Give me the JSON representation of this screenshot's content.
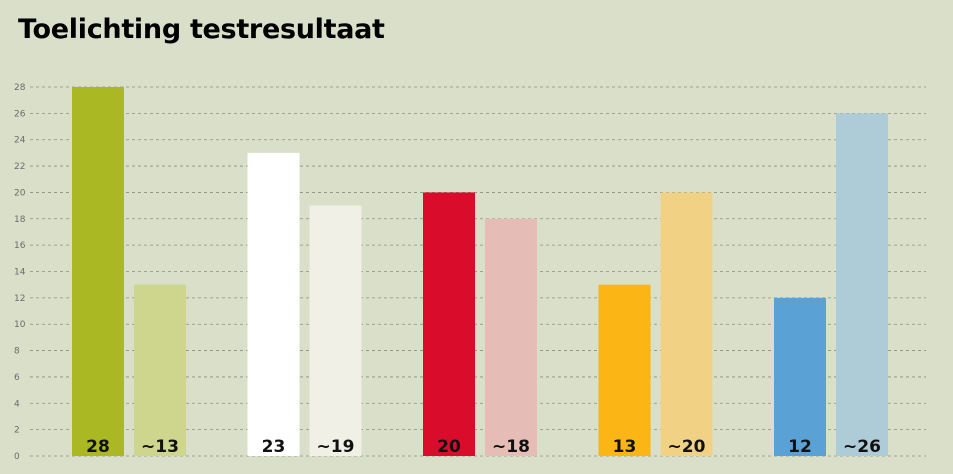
{
  "page": {
    "title": "Toelichting testresultaat"
  },
  "chart_data": {
    "type": "bar",
    "title": "Toelichting testresultaat",
    "xlabel": "",
    "ylabel": "",
    "ylim": [
      0,
      28
    ],
    "yticks": [
      0,
      2,
      4,
      6,
      8,
      10,
      12,
      14,
      16,
      18,
      20,
      22,
      24,
      26,
      28
    ],
    "grid": true,
    "bars": [
      {
        "value": 28,
        "label": "28",
        "color": "#a9b823"
      },
      {
        "value": 13,
        "label": "~13",
        "color": "#cdd68c"
      },
      {
        "value": 23,
        "label": "23",
        "color": "#ffffff"
      },
      {
        "value": 19,
        "label": "~19",
        "color": "#f0f0e6"
      },
      {
        "value": 20,
        "label": "20",
        "color": "#d90c2c"
      },
      {
        "value": 18,
        "label": "~18",
        "color": "#e5bcb6"
      },
      {
        "value": 13,
        "label": "13",
        "color": "#fbb616"
      },
      {
        "value": 20,
        "label": "~20",
        "color": "#f1d285"
      },
      {
        "value": 12,
        "label": "12",
        "color": "#5aa1d5"
      },
      {
        "value": 26,
        "label": "~26",
        "color": "#aecbd8"
      }
    ]
  }
}
